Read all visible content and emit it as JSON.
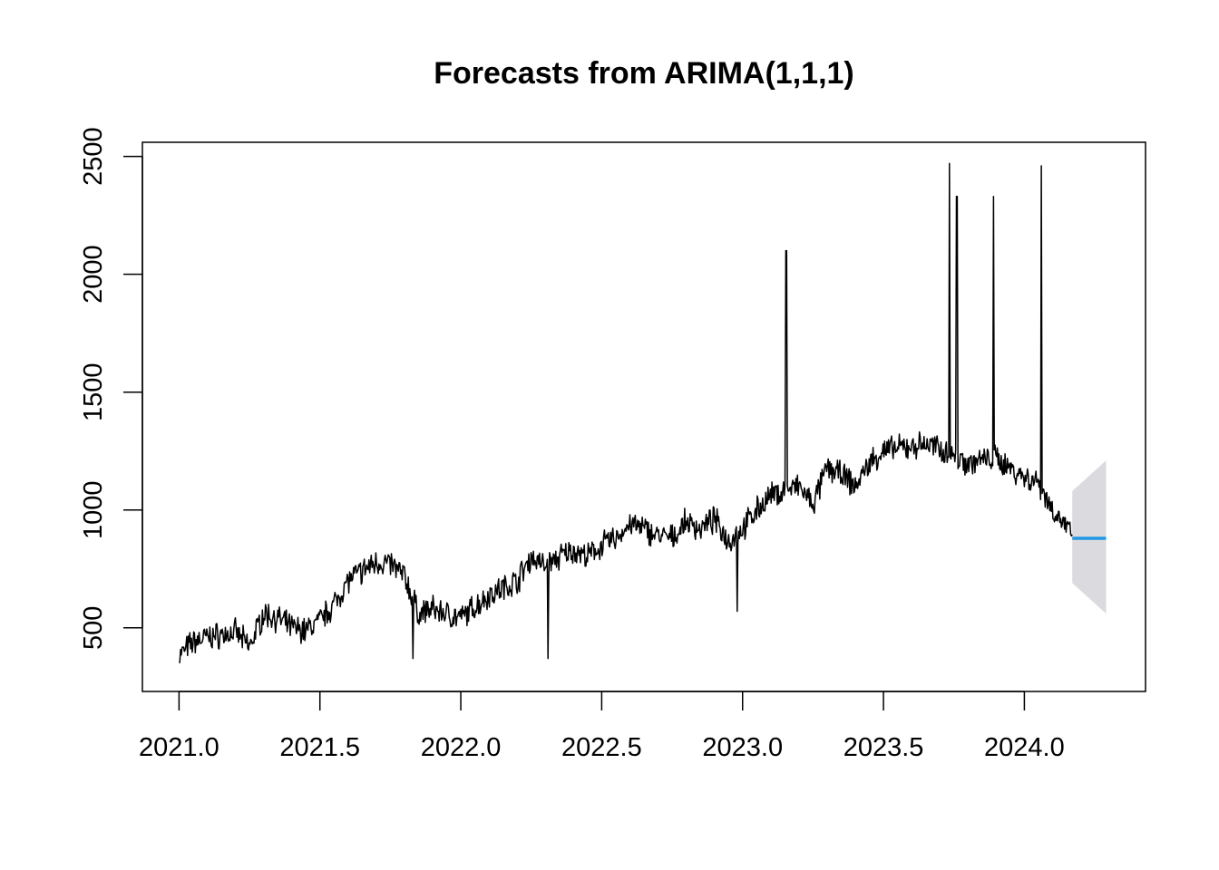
{
  "chart_data": {
    "type": "line",
    "title": "Forecasts from ARIMA(1,1,1)",
    "xlabel": "",
    "ylabel": "",
    "xlim": [
      2020.87,
      2024.43
    ],
    "ylim": [
      230,
      2560
    ],
    "x_ticks": [
      2021.0,
      2021.5,
      2022.0,
      2022.5,
      2023.0,
      2023.5,
      2024.0
    ],
    "x_tick_labels": [
      "2021.0",
      "2021.5",
      "2022.0",
      "2022.5",
      "2023.0",
      "2023.5",
      "2024.0"
    ],
    "y_ticks": [
      500,
      1000,
      1500,
      2000,
      2500
    ],
    "y_tick_labels": [
      "500",
      "1000",
      "1500",
      "2000",
      "2500"
    ],
    "grid": false,
    "legend": "none",
    "series": [
      {
        "role": "observed",
        "color": "#000000",
        "x": [
          2021.0,
          2021.05,
          2021.1,
          2021.15,
          2021.2,
          2021.25,
          2021.3,
          2021.35,
          2021.4,
          2021.45,
          2021.5,
          2021.55,
          2021.6,
          2021.65,
          2021.7,
          2021.75,
          2021.8,
          2021.85,
          2021.9,
          2021.95,
          2022.0,
          2022.05,
          2022.1,
          2022.15,
          2022.2,
          2022.25,
          2022.3,
          2022.35,
          2022.4,
          2022.45,
          2022.5,
          2022.55,
          2022.6,
          2022.65,
          2022.7,
          2022.75,
          2022.8,
          2022.85,
          2022.9,
          2022.95,
          2023.0,
          2023.05,
          2023.1,
          2023.15,
          2023.2,
          2023.25,
          2023.3,
          2023.35,
          2023.4,
          2023.45,
          2023.5,
          2023.55,
          2023.6,
          2023.65,
          2023.7,
          2023.75,
          2023.8,
          2023.85,
          2023.9,
          2023.95,
          2024.0,
          2024.05,
          2024.1,
          2024.15,
          2024.17
        ],
        "y": [
          380,
          440,
          460,
          470,
          480,
          420,
          560,
          540,
          500,
          490,
          530,
          600,
          700,
          740,
          780,
          770,
          720,
          560,
          580,
          560,
          540,
          590,
          640,
          670,
          700,
          800,
          760,
          800,
          830,
          800,
          850,
          880,
          940,
          920,
          890,
          880,
          950,
          920,
          960,
          870,
          920,
          1000,
          1060,
          1080,
          1100,
          1020,
          1180,
          1150,
          1100,
          1200,
          1250,
          1260,
          1270,
          1280,
          1260,
          1230,
          1200,
          1210,
          1220,
          1180,
          1140,
          1120,
          1000,
          930,
          880
        ],
        "spikes": [
          {
            "x": 2023.155,
            "y": 2100
          },
          {
            "x": 2023.735,
            "y": 2470
          },
          {
            "x": 2023.76,
            "y": 2330
          },
          {
            "x": 2023.89,
            "y": 2330
          },
          {
            "x": 2024.06,
            "y": 2460
          },
          {
            "x": 2022.31,
            "y": 370
          },
          {
            "x": 2021.83,
            "y": 370
          },
          {
            "x": 2022.98,
            "y": 570
          }
        ]
      },
      {
        "role": "forecast",
        "color": "#2297E6",
        "x": [
          2024.17,
          2024.29
        ],
        "y": [
          880,
          880
        ]
      },
      {
        "role": "prediction-interval",
        "color": "#DADADF",
        "x": [
          2024.17,
          2024.29
        ],
        "lower": [
          690,
          560
        ],
        "upper": [
          1080,
          1210
        ]
      }
    ]
  }
}
